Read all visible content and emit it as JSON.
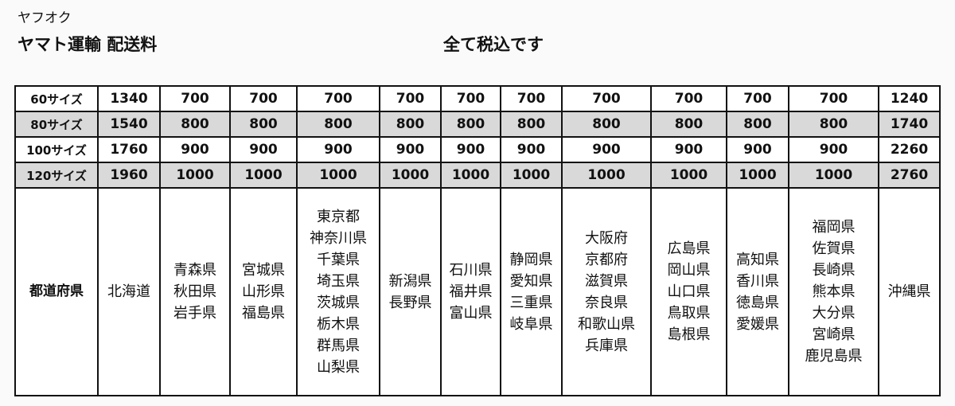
{
  "brand": "ヤフオク",
  "title": "ヤマト運輸 配送料",
  "note": "全て税込です",
  "rows": [
    {
      "label": "60サイズ",
      "values": [
        "1340",
        "700",
        "700",
        "700",
        "700",
        "700",
        "700",
        "700",
        "700",
        "700",
        "700",
        "1240"
      ],
      "shaded": false
    },
    {
      "label": "80サイズ",
      "values": [
        "1540",
        "800",
        "800",
        "800",
        "800",
        "800",
        "800",
        "800",
        "800",
        "800",
        "800",
        "1740"
      ],
      "shaded": true
    },
    {
      "label": "100サイズ",
      "values": [
        "1760",
        "900",
        "900",
        "900",
        "900",
        "900",
        "900",
        "900",
        "900",
        "900",
        "900",
        "2260"
      ],
      "shaded": false
    },
    {
      "label": "120サイズ",
      "values": [
        "1960",
        "1000",
        "1000",
        "1000",
        "1000",
        "1000",
        "1000",
        "1000",
        "1000",
        "1000",
        "1000",
        "2760"
      ],
      "shaded": true
    }
  ],
  "prefecture_label": "都道府県",
  "prefectures": [
    [
      "北海道"
    ],
    [
      "青森県",
      "秋田県",
      "岩手県"
    ],
    [
      "宮城県",
      "山形県",
      "福島県"
    ],
    [
      "東京都",
      "神奈川県",
      "千葉県",
      "埼玉県",
      "茨城県",
      "栃木県",
      "群馬県",
      "山梨県"
    ],
    [
      "新潟県",
      "長野県"
    ],
    [
      "石川県",
      "福井県",
      "富山県"
    ],
    [
      "静岡県",
      "愛知県",
      "三重県",
      "岐阜県"
    ],
    [
      "大阪府",
      "京都府",
      "滋賀県",
      "奈良県",
      "和歌山県",
      "兵庫県"
    ],
    [
      "広島県",
      "岡山県",
      "山口県",
      "鳥取県",
      "島根県"
    ],
    [
      "高知県",
      "香川県",
      "徳島県",
      "愛媛県"
    ],
    [
      "福岡県",
      "佐賀県",
      "長崎県",
      "熊本県",
      "大分県",
      "宮崎県",
      "鹿児島県"
    ],
    [
      "沖縄県"
    ]
  ]
}
